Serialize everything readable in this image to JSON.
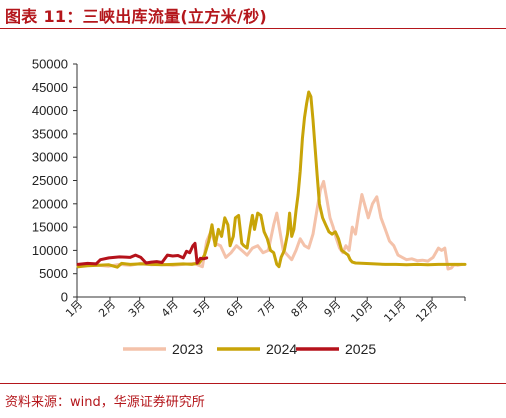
{
  "header": {
    "title": "图表 11：三峡出库流量(立方米/秒)"
  },
  "footer": {
    "source": "资料来源：wind，华源证券研究所"
  },
  "chart_data": {
    "type": "line",
    "title": "图表 11：三峡出库流量(立方米/秒)",
    "xlabel": "",
    "ylabel": "",
    "ylim": [
      0,
      50000
    ],
    "yticks": [
      0,
      5000,
      10000,
      15000,
      20000,
      25000,
      30000,
      35000,
      40000,
      45000,
      50000
    ],
    "month_labels": [
      "1月",
      "2月",
      "3月",
      "4月",
      "5月",
      "6月",
      "7月",
      "8月",
      "9月",
      "10月",
      "11月",
      "12月"
    ],
    "grid": false,
    "legend": "bottom",
    "series": [
      {
        "name": "2023",
        "color": "#f4c2aa",
        "points": [
          [
            1,
            6500
          ],
          [
            10,
            7000
          ],
          [
            20,
            6800
          ],
          [
            30,
            6600
          ],
          [
            40,
            7000
          ],
          [
            50,
            6800
          ],
          [
            60,
            7200
          ],
          [
            70,
            6900
          ],
          [
            80,
            7000
          ],
          [
            90,
            6800
          ],
          [
            100,
            7000
          ],
          [
            110,
            7200
          ],
          [
            118,
            6500
          ],
          [
            122,
            12000
          ],
          [
            126,
            14000
          ],
          [
            130,
            11500
          ],
          [
            135,
            11000
          ],
          [
            140,
            8500
          ],
          [
            145,
            9500
          ],
          [
            150,
            11000
          ],
          [
            155,
            10000
          ],
          [
            160,
            9000
          ],
          [
            165,
            10500
          ],
          [
            170,
            11000
          ],
          [
            175,
            9500
          ],
          [
            180,
            10000
          ],
          [
            185,
            15500
          ],
          [
            188,
            18000
          ],
          [
            191,
            14000
          ],
          [
            194,
            10000
          ],
          [
            198,
            9000
          ],
          [
            202,
            8000
          ],
          [
            206,
            10000
          ],
          [
            210,
            12500
          ],
          [
            214,
            11000
          ],
          [
            218,
            10500
          ],
          [
            222,
            13500
          ],
          [
            226,
            19000
          ],
          [
            229,
            23000
          ],
          [
            232,
            24800
          ],
          [
            235,
            21000
          ],
          [
            238,
            17000
          ],
          [
            241,
            15000
          ],
          [
            244,
            12500
          ],
          [
            247,
            10500
          ],
          [
            250,
            9500
          ],
          [
            253,
            11000
          ],
          [
            256,
            10000
          ],
          [
            259,
            15000
          ],
          [
            262,
            13500
          ],
          [
            265,
            18000
          ],
          [
            268,
            22000
          ],
          [
            271,
            19500
          ],
          [
            274,
            17000
          ],
          [
            278,
            20000
          ],
          [
            282,
            21500
          ],
          [
            286,
            17000
          ],
          [
            290,
            14500
          ],
          [
            294,
            12000
          ],
          [
            298,
            11000
          ],
          [
            302,
            9000
          ],
          [
            306,
            8500
          ],
          [
            310,
            8000
          ],
          [
            315,
            8200
          ],
          [
            320,
            7800
          ],
          [
            325,
            7900
          ],
          [
            330,
            7700
          ],
          [
            335,
            8500
          ],
          [
            340,
            10500
          ],
          [
            343,
            10000
          ],
          [
            346,
            10500
          ],
          [
            349,
            6000
          ],
          [
            352,
            6200
          ],
          [
            355,
            7000
          ],
          [
            358,
            6800
          ],
          [
            362,
            7000
          ]
        ]
      },
      {
        "name": "2024",
        "color": "#c8a408",
        "points": [
          [
            1,
            6500
          ],
          [
            10,
            6700
          ],
          [
            20,
            6800
          ],
          [
            30,
            6900
          ],
          [
            38,
            6400
          ],
          [
            42,
            7200
          ],
          [
            50,
            7000
          ],
          [
            60,
            7100
          ],
          [
            70,
            7000
          ],
          [
            80,
            6900
          ],
          [
            90,
            7000
          ],
          [
            100,
            7100
          ],
          [
            108,
            7000
          ],
          [
            115,
            7300
          ],
          [
            120,
            9000
          ],
          [
            124,
            12000
          ],
          [
            127,
            15500
          ],
          [
            130,
            11000
          ],
          [
            133,
            14500
          ],
          [
            136,
            13000
          ],
          [
            139,
            17000
          ],
          [
            142,
            15500
          ],
          [
            144,
            11000
          ],
          [
            147,
            13000
          ],
          [
            149,
            17000
          ],
          [
            152,
            17500
          ],
          [
            155,
            11500
          ],
          [
            157,
            11000
          ],
          [
            160,
            10500
          ],
          [
            163,
            15000
          ],
          [
            165,
            17500
          ],
          [
            167,
            14500
          ],
          [
            170,
            18000
          ],
          [
            173,
            17500
          ],
          [
            176,
            14000
          ],
          [
            179,
            12500
          ],
          [
            182,
            10000
          ],
          [
            185,
            9500
          ],
          [
            188,
            7000
          ],
          [
            190,
            6500
          ],
          [
            192,
            8500
          ],
          [
            195,
            10000
          ],
          [
            198,
            13500
          ],
          [
            200,
            18000
          ],
          [
            202,
            13000
          ],
          [
            204,
            14500
          ],
          [
            206,
            18500
          ],
          [
            208,
            22000
          ],
          [
            210,
            27000
          ],
          [
            212,
            34000
          ],
          [
            214,
            38500
          ],
          [
            216,
            41500
          ],
          [
            218,
            44000
          ],
          [
            220,
            43000
          ],
          [
            222,
            38000
          ],
          [
            224,
            32000
          ],
          [
            226,
            26000
          ],
          [
            228,
            20000
          ],
          [
            231,
            17000
          ],
          [
            234,
            15500
          ],
          [
            237,
            14000
          ],
          [
            240,
            13500
          ],
          [
            243,
            14000
          ],
          [
            246,
            12500
          ],
          [
            249,
            10000
          ],
          [
            252,
            9500
          ],
          [
            255,
            9000
          ],
          [
            257,
            8000
          ],
          [
            259,
            7500
          ],
          [
            262,
            7300
          ],
          [
            270,
            7200
          ],
          [
            280,
            7100
          ],
          [
            290,
            7000
          ],
          [
            300,
            7000
          ],
          [
            310,
            6900
          ],
          [
            320,
            7000
          ],
          [
            330,
            6900
          ],
          [
            340,
            7000
          ],
          [
            350,
            7000
          ],
          [
            360,
            7000
          ],
          [
            365,
            7000
          ]
        ]
      },
      {
        "name": "2025",
        "color": "#b5121b",
        "points": [
          [
            1,
            7000
          ],
          [
            10,
            7200
          ],
          [
            18,
            7100
          ],
          [
            22,
            8000
          ],
          [
            30,
            8400
          ],
          [
            40,
            8600
          ],
          [
            50,
            8500
          ],
          [
            55,
            9000
          ],
          [
            60,
            8500
          ],
          [
            65,
            7300
          ],
          [
            70,
            7500
          ],
          [
            75,
            7600
          ],
          [
            80,
            7400
          ],
          [
            85,
            9000
          ],
          [
            90,
            8800
          ],
          [
            95,
            8900
          ],
          [
            100,
            8400
          ],
          [
            103,
            9800
          ],
          [
            106,
            9500
          ],
          [
            109,
            11000
          ],
          [
            111,
            11500
          ],
          [
            113,
            7300
          ],
          [
            116,
            8300
          ],
          [
            119,
            8200
          ],
          [
            122,
            8400
          ]
        ]
      }
    ]
  }
}
